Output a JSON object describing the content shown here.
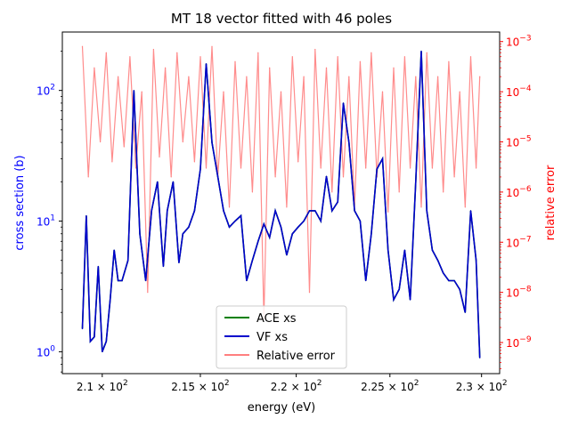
{
  "chart_data": {
    "type": "line",
    "title": "MT 18 vector fitted with 46 poles",
    "xlabel": "energy (eV)",
    "ylabel_left": "cross section (b)",
    "ylabel_right": "relative error",
    "x_scale": "log",
    "y_left_scale": "log",
    "y_right_scale": "log",
    "xlim": [
      208.0,
      231.0
    ],
    "ylim_left": [
      0.68,
      280
    ],
    "ylim_right": [
      2.4e-10,
      0.00155
    ],
    "x_ticks": [
      {
        "value": 210,
        "base": "2.1 × 10",
        "exp": "2"
      },
      {
        "value": 215,
        "base": "2.15 × 10",
        "exp": "2"
      },
      {
        "value": 220,
        "base": "2.2 × 10",
        "exp": "2"
      },
      {
        "value": 225,
        "base": "2.25 × 10",
        "exp": "2"
      },
      {
        "value": 230,
        "base": "2.3 × 10",
        "exp": "2"
      }
    ],
    "y_left_ticks": [
      {
        "value": 1,
        "base": "10",
        "exp": "0"
      },
      {
        "value": 10,
        "base": "10",
        "exp": "1"
      },
      {
        "value": 100,
        "base": "10",
        "exp": "2"
      }
    ],
    "y_right_ticks": [
      {
        "value": 1e-09,
        "base": "10",
        "exp": "−9"
      },
      {
        "value": 1e-08,
        "base": "10",
        "exp": "−8"
      },
      {
        "value": 1e-07,
        "base": "10",
        "exp": "−7"
      },
      {
        "value": 1e-06,
        "base": "10",
        "exp": "−6"
      },
      {
        "value": 1e-05,
        "base": "10",
        "exp": "−5"
      },
      {
        "value": 0.0001,
        "base": "10",
        "exp": "−4"
      },
      {
        "value": 0.001,
        "base": "10",
        "exp": "−3"
      }
    ],
    "legend_position": "lower-center",
    "series": [
      {
        "name": "ACE xs",
        "color": "#008000",
        "axis": "left",
        "x": [
          209.0,
          209.2,
          209.4,
          209.6,
          209.8,
          210.0,
          210.2,
          210.4,
          210.6,
          210.8,
          211.0,
          211.3,
          211.6,
          211.9,
          212.2,
          212.5,
          212.8,
          213.1,
          213.3,
          213.6,
          213.9,
          214.1,
          214.4,
          214.7,
          215.0,
          215.3,
          215.6,
          215.9,
          216.2,
          216.5,
          216.8,
          217.1,
          217.4,
          217.7,
          218.0,
          218.3,
          218.6,
          218.9,
          219.2,
          219.5,
          219.8,
          220.1,
          220.4,
          220.7,
          221.0,
          221.3,
          221.6,
          221.9,
          222.2,
          222.5,
          222.8,
          223.1,
          223.4,
          223.7,
          224.0,
          224.3,
          224.6,
          224.9,
          225.2,
          225.5,
          225.8,
          226.1,
          226.4,
          226.7,
          227.0,
          227.3,
          227.6,
          227.9,
          228.2,
          228.5,
          228.8,
          229.1,
          229.4,
          229.7,
          229.9
        ],
        "values": [
          1.5,
          11.0,
          1.2,
          1.3,
          4.5,
          1.0,
          1.2,
          2.5,
          6.0,
          3.5,
          3.5,
          5.0,
          100,
          8.0,
          3.5,
          12,
          20,
          4.5,
          12,
          20,
          4.8,
          8.0,
          9.0,
          12,
          25,
          160,
          40,
          22,
          12,
          9.0,
          10,
          11,
          3.5,
          5.0,
          7.0,
          9.5,
          7.5,
          12,
          9.0,
          5.5,
          8.0,
          9.0,
          10,
          12,
          12,
          10,
          22,
          12,
          14,
          80,
          40,
          12,
          10,
          3.5,
          8.0,
          25,
          30,
          6.0,
          2.5,
          3.0,
          6.0,
          2.5,
          20,
          200,
          12,
          6.0,
          5.0,
          4.0,
          3.5,
          3.5,
          3.0,
          2.0,
          12,
          5.0,
          0.9
        ]
      },
      {
        "name": "VF xs",
        "color": "#0000cc",
        "axis": "left",
        "x": [
          209.0,
          209.2,
          209.4,
          209.6,
          209.8,
          210.0,
          210.2,
          210.4,
          210.6,
          210.8,
          211.0,
          211.3,
          211.6,
          211.9,
          212.2,
          212.5,
          212.8,
          213.1,
          213.3,
          213.6,
          213.9,
          214.1,
          214.4,
          214.7,
          215.0,
          215.3,
          215.6,
          215.9,
          216.2,
          216.5,
          216.8,
          217.1,
          217.4,
          217.7,
          218.0,
          218.3,
          218.6,
          218.9,
          219.2,
          219.5,
          219.8,
          220.1,
          220.4,
          220.7,
          221.0,
          221.3,
          221.6,
          221.9,
          222.2,
          222.5,
          222.8,
          223.1,
          223.4,
          223.7,
          224.0,
          224.3,
          224.6,
          224.9,
          225.2,
          225.5,
          225.8,
          226.1,
          226.4,
          226.7,
          227.0,
          227.3,
          227.6,
          227.9,
          228.2,
          228.5,
          228.8,
          229.1,
          229.4,
          229.7,
          229.9
        ],
        "values": [
          1.5,
          11.0,
          1.2,
          1.3,
          4.5,
          1.0,
          1.2,
          2.5,
          6.0,
          3.5,
          3.5,
          5.0,
          100,
          8.0,
          3.5,
          12,
          20,
          4.5,
          12,
          20,
          4.8,
          8.0,
          9.0,
          12,
          25,
          160,
          40,
          22,
          12,
          9.0,
          10,
          11,
          3.5,
          5.0,
          7.0,
          9.5,
          7.5,
          12,
          9.0,
          5.5,
          8.0,
          9.0,
          10,
          12,
          12,
          10,
          22,
          12,
          14,
          80,
          40,
          12,
          10,
          3.5,
          8.0,
          25,
          30,
          6.0,
          2.5,
          3.0,
          6.0,
          2.5,
          20,
          200,
          12,
          6.0,
          5.0,
          4.0,
          3.5,
          3.5,
          3.0,
          2.0,
          12,
          5.0,
          0.9
        ]
      },
      {
        "name": "Relative error",
        "color": "#ff7f7f",
        "axis": "right",
        "x": [
          209.0,
          209.3,
          209.6,
          209.9,
          210.2,
          210.5,
          210.8,
          211.1,
          211.4,
          211.7,
          212.0,
          212.3,
          212.6,
          212.9,
          213.2,
          213.5,
          213.8,
          214.1,
          214.4,
          214.7,
          215.0,
          215.3,
          215.6,
          215.9,
          216.2,
          216.5,
          216.8,
          217.1,
          217.4,
          217.7,
          218.0,
          218.3,
          218.6,
          218.9,
          219.2,
          219.5,
          219.8,
          220.1,
          220.4,
          220.7,
          221.0,
          221.3,
          221.6,
          221.9,
          222.2,
          222.5,
          222.8,
          223.1,
          223.4,
          223.7,
          224.0,
          224.3,
          224.6,
          224.9,
          225.2,
          225.5,
          225.8,
          226.1,
          226.4,
          226.7,
          227.0,
          227.3,
          227.6,
          227.9,
          228.2,
          228.5,
          228.8,
          229.1,
          229.4,
          229.7,
          229.9
        ],
        "values": [
          0.0008,
          2e-06,
          0.0003,
          1e-05,
          0.0006,
          4e-06,
          0.0002,
          8e-06,
          0.0005,
          3e-06,
          0.0001,
          1e-08,
          0.0007,
          5e-06,
          0.0003,
          2e-06,
          0.0006,
          1e-05,
          0.0002,
          4e-06,
          0.0005,
          3e-06,
          0.0008,
          2e-06,
          0.0001,
          5e-07,
          0.0004,
          3e-06,
          0.0002,
          1e-06,
          0.0006,
          3e-09,
          0.0003,
          2e-06,
          0.0001,
          5e-07,
          0.0005,
          4e-06,
          0.0002,
          1e-08,
          0.0007,
          3e-06,
          0.0003,
          1e-06,
          0.0005,
          2e-06,
          0.0002,
          5e-07,
          0.0004,
          3e-06,
          0.0006,
          2e-06,
          0.0001,
          4e-07,
          0.0003,
          1e-06,
          0.0005,
          3e-06,
          0.0002,
          5e-07,
          0.0006,
          3e-06,
          0.0002,
          1e-06,
          0.0004,
          2e-06,
          0.0001,
          5e-07,
          0.0005,
          3e-06,
          0.0002
        ]
      }
    ]
  }
}
